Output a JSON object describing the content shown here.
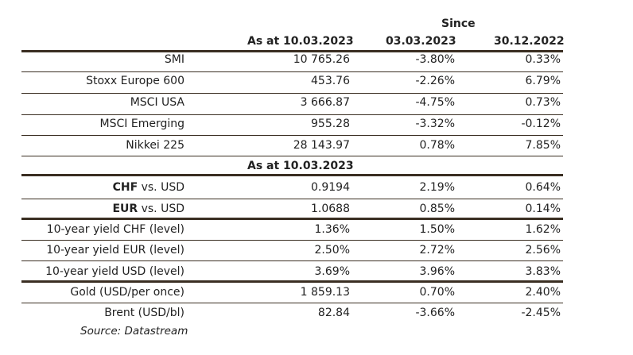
{
  "table": {
    "since_label": "Since",
    "header": {
      "col1": "As at 10.03.2023",
      "col2": "03.03.2023",
      "col3": "30.12.2022"
    },
    "section2_header": "As at 10.03.2023",
    "rows": [
      {
        "label": "SMI",
        "v1": "10 765.26",
        "v2": "-3.80%",
        "v3": "0.33%"
      },
      {
        "label": "Stoxx Europe 600",
        "v1": "453.76",
        "v2": "-2.26%",
        "v3": "6.79%"
      },
      {
        "label": "MSCI USA",
        "v1": "3 666.87",
        "v2": "-4.75%",
        "v3": "0.73%"
      },
      {
        "label": "MSCI Emerging",
        "v1": "955.28",
        "v2": "-3.32%",
        "v3": "-0.12%"
      },
      {
        "label": "Nikkei 225",
        "v1": "28 143.97",
        "v2": "0.78%",
        "v3": "7.85%"
      },
      {
        "label_bold": "CHF",
        "label_rest": " vs. USD",
        "v1": "0.9194",
        "v2": "2.19%",
        "v3": "0.64%"
      },
      {
        "label_bold": "EUR",
        "label_rest": " vs. USD",
        "v1": "1.0688",
        "v2": "0.85%",
        "v3": "0.14%"
      },
      {
        "label": "10-year yield CHF (level)",
        "v1": "1.36%",
        "v2": "1.50%",
        "v3": "1.62%"
      },
      {
        "label": "10-year yield EUR (level)",
        "v1": "2.50%",
        "v2": "2.72%",
        "v3": "2.56%"
      },
      {
        "label": "10-year yield USD (level)",
        "v1": "3.69%",
        "v2": "3.96%",
        "v3": "3.83%"
      },
      {
        "label": "Gold (USD/per once)",
        "v1": "1 859.13",
        "v2": "0.70%",
        "v3": "2.40%"
      },
      {
        "label": "Brent (USD/bl)",
        "v1": "82.84",
        "v2": "-3.66%",
        "v3": "-2.45%"
      }
    ],
    "source": "Source: Datastream"
  }
}
